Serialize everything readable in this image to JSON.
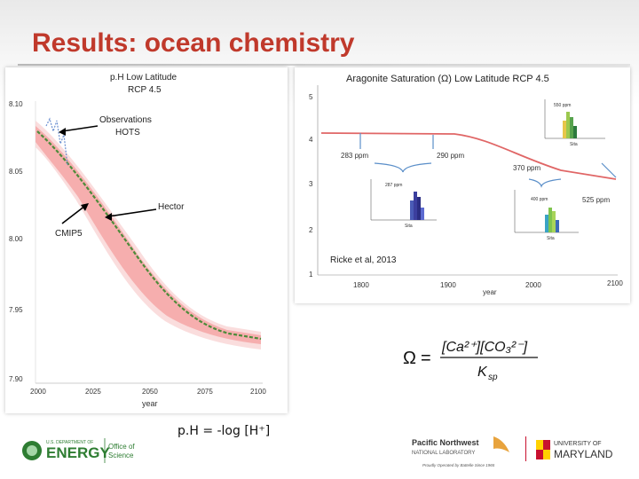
{
  "slide": {
    "title": "Results: ocean chemistry",
    "ph_formula": "p.H = -log [H⁺]"
  },
  "left_chart": {
    "title_line1": "p.H Low Latitude",
    "title_line2": "RCP 4.5",
    "annotation_observations_line1": "Observations",
    "annotation_observations_line2": "HOTS",
    "annotation_hector": "Hector",
    "annotation_cmip5": "CMIP5",
    "xlabel": "year",
    "y_ticks": [
      "8.10",
      "8.05",
      "8.00",
      "7.95",
      "7.90"
    ],
    "x_ticks": [
      "2000",
      "2025",
      "2050",
      "2075",
      "2100"
    ],
    "colors": {
      "hector": "#4d8b3a",
      "cmip5_band": "#f4a6a6",
      "observations": "#6a8fd0"
    }
  },
  "right_chart": {
    "title": "Aragonite Saturation (Ω) Low Latitude RCP 4.5",
    "citation": "Ricke et al, 2013",
    "xlabel": "year",
    "y_ticks": [
      "5",
      "4",
      "3",
      "2",
      "1"
    ],
    "x_ticks": [
      "1800",
      "1900",
      "2000",
      "2100"
    ],
    "ppm_labels": [
      "283 ppm",
      "290 ppm",
      "370 ppm",
      "525 ppm"
    ],
    "inset_ppm_labels": [
      "550 ppm",
      "287 ppm",
      "400 ppm"
    ],
    "inset_ylabel": "Number of Pixels",
    "inset_xlabel": "Sita",
    "colors": {
      "curve": "#e06666"
    }
  },
  "equation": {
    "lhs": "Ω",
    "equals": "=",
    "numerator": "[Ca²⁺][CO₃²⁻]",
    "denominator": "K",
    "denominator_sub": "sp"
  },
  "logos": {
    "doe_small": "U.S. DEPARTMENT OF",
    "doe_big": "ENERGY",
    "doe_office_line1": "Office of",
    "doe_office_line2": "Science",
    "pnnl_line1": "Pacific Northwest",
    "pnnl_line2": "NATIONAL LABORATORY",
    "pnnl_line3": "Proudly Operated by Battelle Since 1965",
    "umd_line1": "UNIVERSITY OF",
    "umd_line2": "MARYLAND"
  }
}
